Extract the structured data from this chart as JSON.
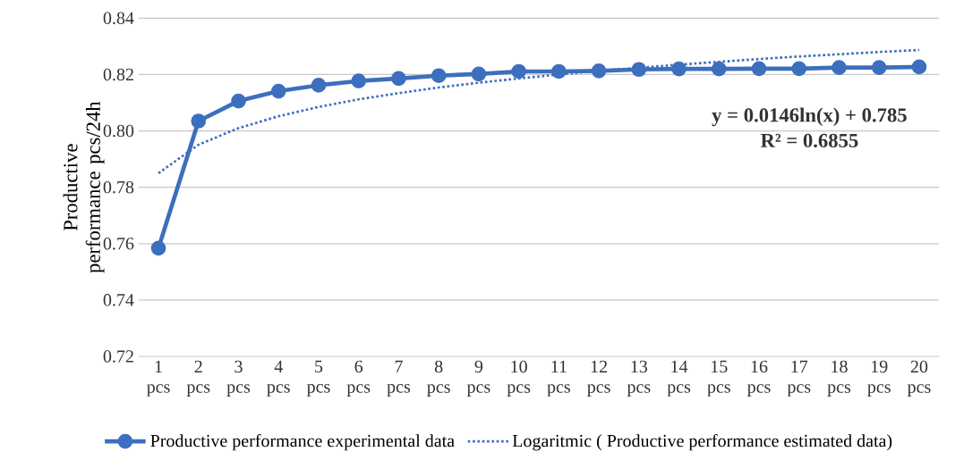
{
  "chart_data": {
    "type": "line",
    "ylabel": "Productive performance pcs/24h",
    "categories": [
      "1 pcs",
      "2 pcs",
      "3 pcs",
      "4 pcs",
      "5 pcs",
      "6 pcs",
      "7 pcs",
      "8 pcs",
      "9 pcs",
      "10 pcs",
      "11 pcs",
      "12 pcs",
      "13 pcs",
      "14 pcs",
      "15 pcs",
      "16 pcs",
      "17 pcs",
      "18 pcs",
      "19 pcs",
      "20 pcs"
    ],
    "series": [
      {
        "name": "Productive performance experimental data",
        "color": "#3c6fbd",
        "marker": "circle",
        "line_style": "solid",
        "values": [
          0.7584,
          0.8035,
          0.8106,
          0.8141,
          0.8162,
          0.8177,
          0.8186,
          0.8196,
          0.8202,
          0.8211,
          0.8211,
          0.8213,
          0.8218,
          0.822,
          0.822,
          0.8221,
          0.8221,
          0.8225,
          0.8225,
          0.8227
        ]
      },
      {
        "name": "Logaritmic ( Productive performance estimated data)",
        "color": "#3c6fbd",
        "marker": "none",
        "line_style": "dotted",
        "values": [
          0.785,
          0.7951,
          0.801,
          0.8052,
          0.8085,
          0.8112,
          0.8134,
          0.8154,
          0.8171,
          0.8186,
          0.82,
          0.8213,
          0.8224,
          0.8235,
          0.8245,
          0.8255,
          0.8264,
          0.8272,
          0.828,
          0.8287
        ]
      }
    ],
    "annotations": [
      "y = 0.0146ln(x) + 0.785",
      "R² = 0.6855"
    ],
    "ylim": [
      0.72,
      0.84
    ],
    "yticks": [
      {
        "value": 0.72,
        "label": "0.72"
      },
      {
        "value": 0.74,
        "label": "0.74"
      },
      {
        "value": 0.76,
        "label": "0.76"
      },
      {
        "value": 0.78,
        "label": "0.78"
      },
      {
        "value": 0.8,
        "label": "0.80"
      },
      {
        "value": 0.82,
        "label": "0.82"
      },
      {
        "value": 0.84,
        "label": "0.84"
      }
    ],
    "grid": "y",
    "legend": "bottom"
  }
}
